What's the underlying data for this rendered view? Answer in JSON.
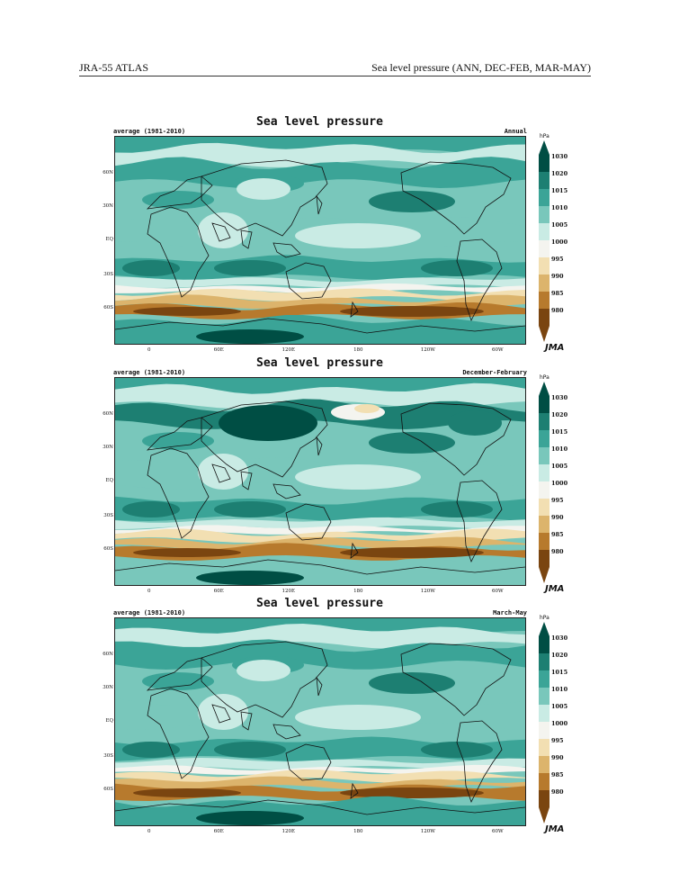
{
  "header": {
    "left": "JRA-55 ATLAS",
    "right": "Sea level pressure (ANN, DEC-FEB, MAR-MAY)"
  },
  "colors": {
    "c1030": "#004e44",
    "c1020": "#1d7f72",
    "c1015": "#3ba497",
    "c1010": "#79c7bb",
    "c1005": "#c9ebe4",
    "c1000": "#f4f4ef",
    "c995": "#f2dfb2",
    "c990": "#dcb46c",
    "c985": "#b77a2d",
    "c980": "#7a4510"
  },
  "map_labels": {
    "latitudes": [
      "60N",
      "30N",
      "EQ",
      "30S",
      "60S"
    ],
    "longitudes": [
      "0",
      "60E",
      "120E",
      "180",
      "120W",
      "60W"
    ]
  },
  "legend": {
    "unit": "hPa",
    "levels": [
      "1030",
      "1020",
      "1015",
      "1010",
      "1005",
      "1000",
      "995",
      "990",
      "985",
      "980"
    ]
  },
  "panels": [
    {
      "title": "Sea level pressure",
      "average": "average (1981-2010)",
      "season": "Annual",
      "badge": "JMA"
    },
    {
      "title": "Sea level pressure",
      "average": "average (1981-2010)",
      "season": "December-February",
      "badge": "JMA"
    },
    {
      "title": "Sea level pressure",
      "average": "average (1981-2010)",
      "season": "March-May",
      "badge": "JMA"
    }
  ]
}
